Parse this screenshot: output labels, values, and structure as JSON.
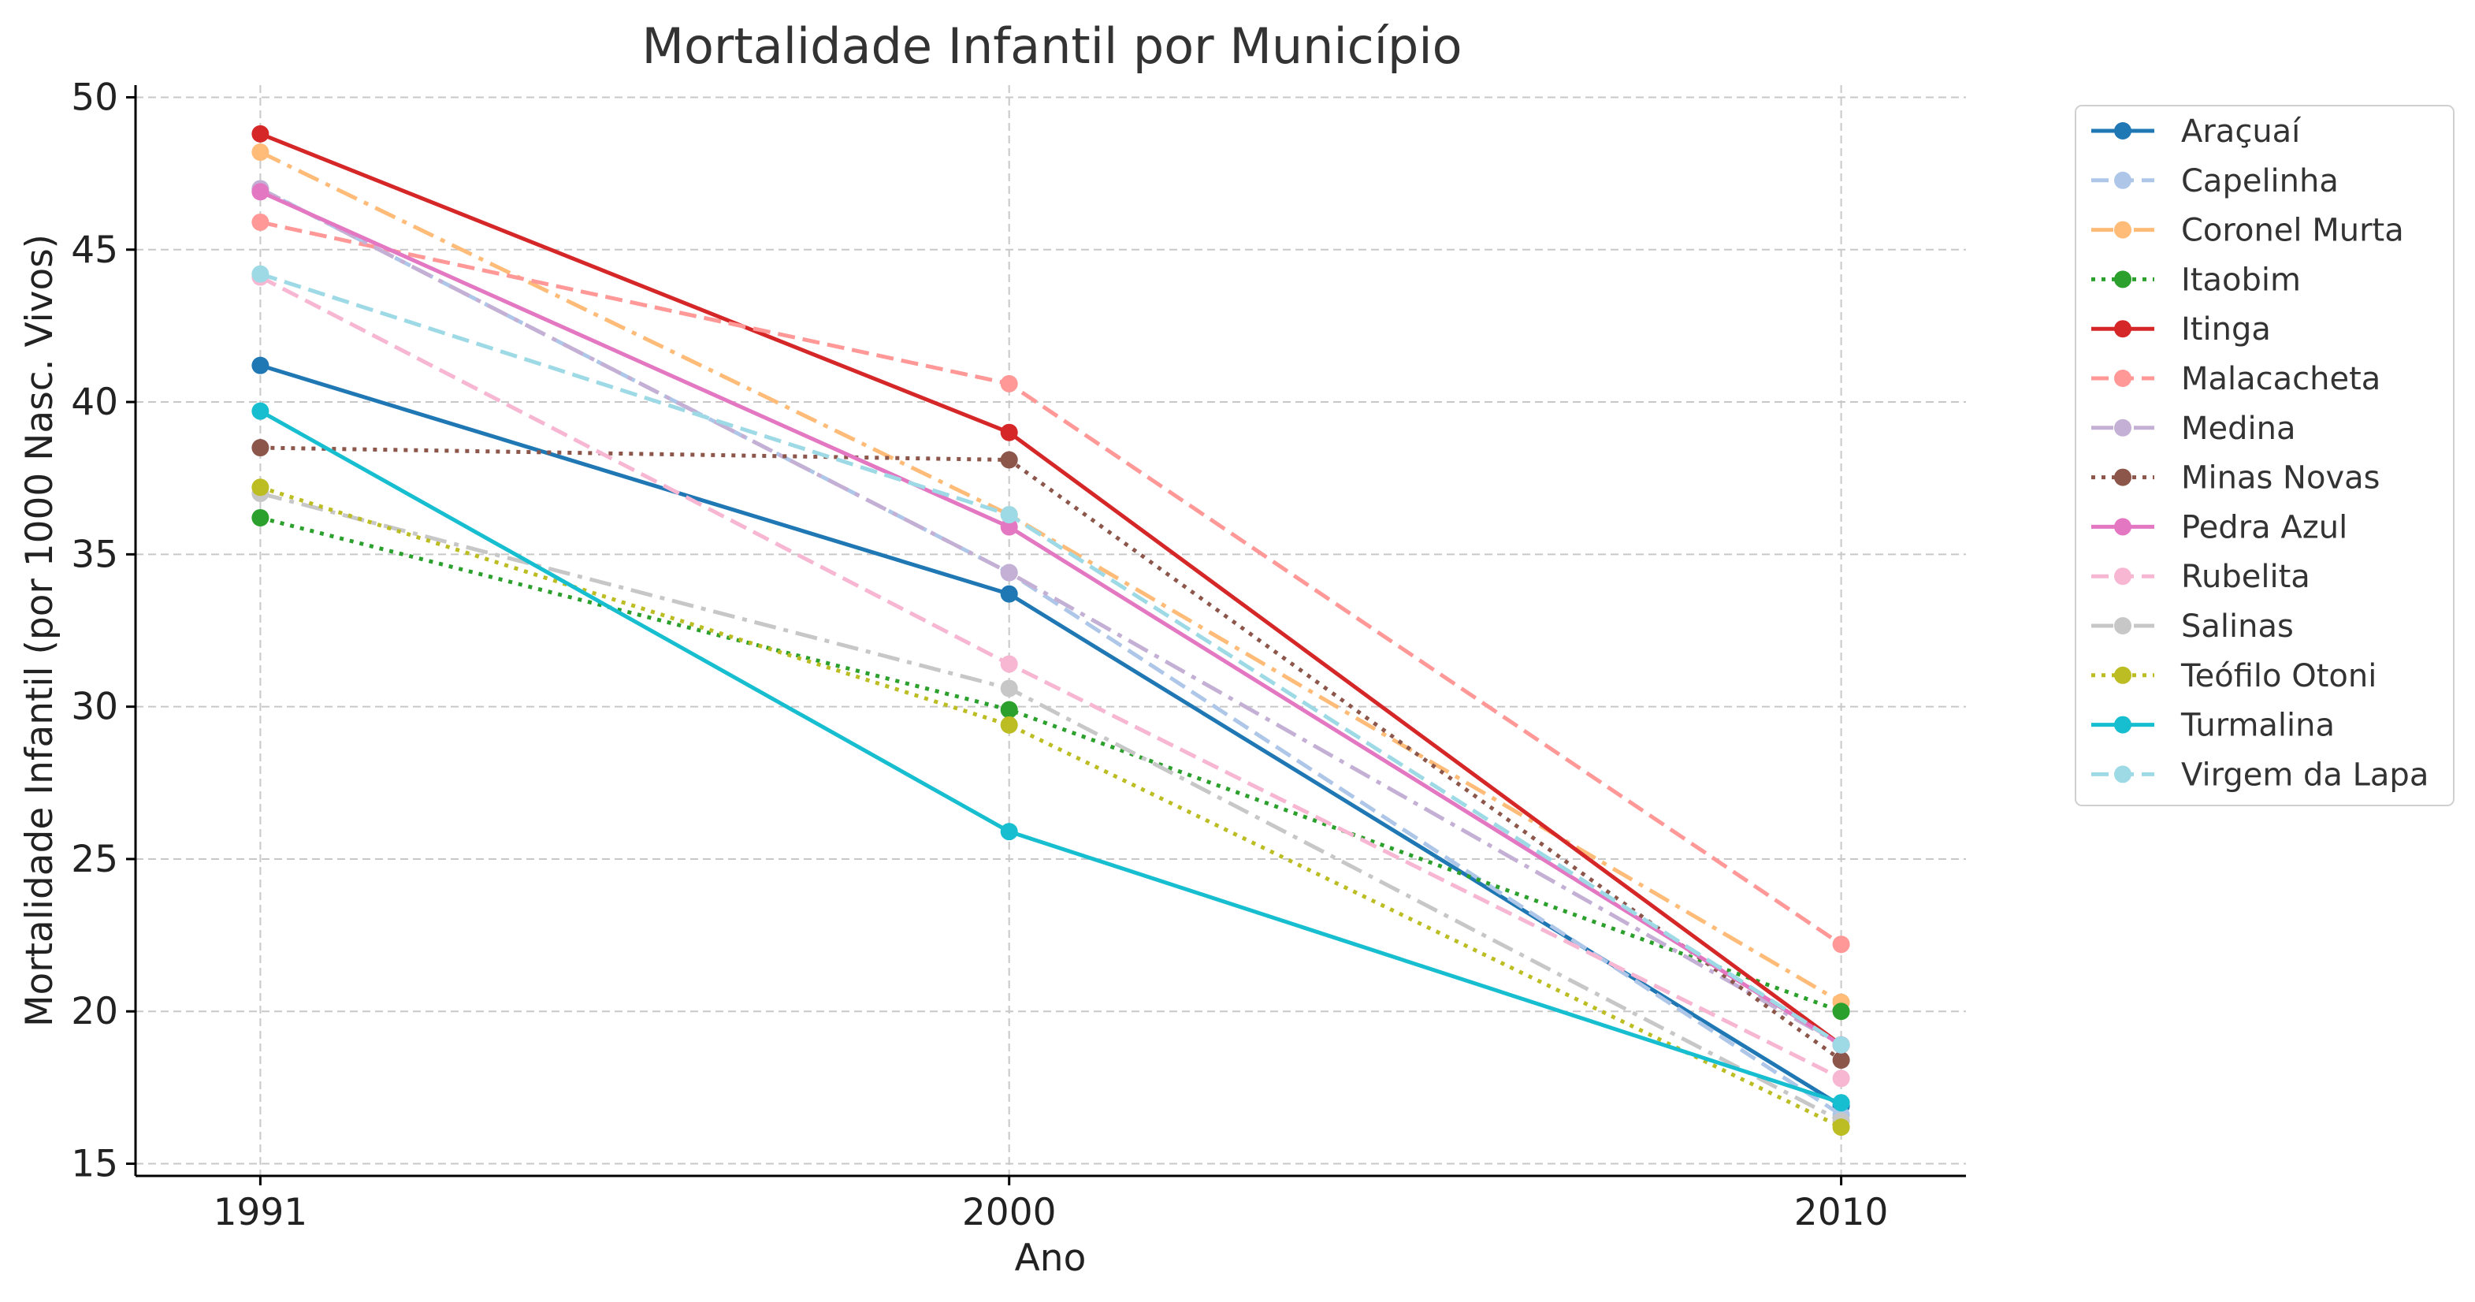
{
  "chart_data": {
    "type": "line",
    "title": "Mortalidade Infantil por Município",
    "xlabel": "Ano",
    "ylabel": "Mortalidade Infantil (por 1000 Nasc. Vivos)",
    "x": [
      1991,
      2000,
      2010
    ],
    "xticks": [
      "1991",
      "2000",
      "2010"
    ],
    "yticks": [
      "15",
      "20",
      "25",
      "30",
      "35",
      "40",
      "45",
      "50"
    ],
    "xlim": [
      1989.5,
      2011.5
    ],
    "ylim": [
      14.6,
      50.4
    ],
    "grid": true,
    "legend_position": "outside-right",
    "series": [
      {
        "name": "Araçuaí",
        "values": [
          41.2,
          33.7,
          16.9
        ],
        "color": "#1f77b4",
        "dash": "solid"
      },
      {
        "name": "Capelinha",
        "values": [
          47.0,
          34.4,
          16.6
        ],
        "color": "#aec7e8",
        "dash": "dashed"
      },
      {
        "name": "Coronel Murta",
        "values": [
          48.2,
          36.3,
          20.3
        ],
        "color": "#ffbb78",
        "dash": "dashdot"
      },
      {
        "name": "Itaobim",
        "values": [
          36.2,
          29.9,
          20.0
        ],
        "color": "#2ca02c",
        "dash": "dotted"
      },
      {
        "name": "Itinga",
        "values": [
          48.8,
          39.0,
          18.9
        ],
        "color": "#d62728",
        "dash": "solid"
      },
      {
        "name": "Malacacheta",
        "values": [
          45.9,
          40.6,
          22.2
        ],
        "color": "#ff9896",
        "dash": "dashed"
      },
      {
        "name": "Medina",
        "values": [
          47.0,
          34.4,
          18.9
        ],
        "color": "#c5b0d5",
        "dash": "dashdot"
      },
      {
        "name": "Minas Novas",
        "values": [
          38.5,
          38.1,
          18.4
        ],
        "color": "#8c564b",
        "dash": "dotted"
      },
      {
        "name": "Pedra Azul",
        "values": [
          46.9,
          35.9,
          18.9
        ],
        "color": "#e377c2",
        "dash": "solid"
      },
      {
        "name": "Rubelita",
        "values": [
          44.1,
          31.4,
          17.8
        ],
        "color": "#f7b6d2",
        "dash": "dashed"
      },
      {
        "name": "Salinas",
        "values": [
          37.0,
          30.6,
          16.4
        ],
        "color": "#c7c7c7",
        "dash": "dashdot"
      },
      {
        "name": "Teófilo Otoni",
        "values": [
          37.2,
          29.4,
          16.2
        ],
        "color": "#bcbd22",
        "dash": "dotted"
      },
      {
        "name": "Turmalina",
        "values": [
          39.7,
          25.9,
          17.0
        ],
        "color": "#17becf",
        "dash": "solid"
      },
      {
        "name": "Virgem da Lapa",
        "values": [
          44.2,
          36.3,
          18.9
        ],
        "color": "#9edae5",
        "dash": "dashed"
      }
    ]
  }
}
